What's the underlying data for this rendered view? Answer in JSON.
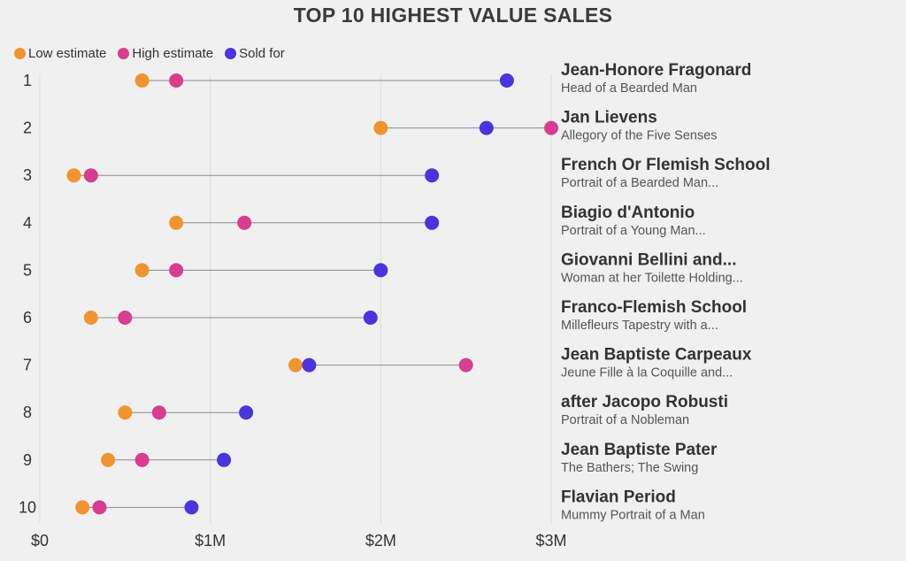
{
  "colors": {
    "low": "#f0942f",
    "high": "#d83d8f",
    "sold": "#4a34de",
    "line": "#8a8a8a",
    "grid": "#dcdcdc"
  },
  "chart_data": {
    "type": "dumbbell",
    "title": "TOP 10 HIGHEST VALUE SALES",
    "legend": [
      {
        "key": "low",
        "label": "Low estimate"
      },
      {
        "key": "high",
        "label": "High estimate"
      },
      {
        "key": "sold",
        "label": "Sold for"
      }
    ],
    "x_ticks": [
      {
        "value": 0,
        "label": "$0"
      },
      {
        "value": 1000000,
        "label": "$1M"
      },
      {
        "value": 2000000,
        "label": "$2M"
      },
      {
        "value": 3000000,
        "label": "$3M"
      }
    ],
    "xlim": [
      0,
      3000000
    ],
    "rows": [
      {
        "rank": "1",
        "artist": "Jean-Honore Fragonard",
        "work": "Head of a Bearded Man",
        "low": 600000,
        "high": 800000,
        "sold": 2740000
      },
      {
        "rank": "2",
        "artist": "Jan Lievens",
        "work": "Allegory of the Five Senses",
        "low": 2000000,
        "high": 3000000,
        "sold": 2620000
      },
      {
        "rank": "3",
        "artist": "French Or Flemish School",
        "work": "Portrait of a Bearded Man...",
        "low": 200000,
        "high": 300000,
        "sold": 2300000
      },
      {
        "rank": "4",
        "artist": "Biagio d'Antonio",
        "work": "Portrait of a Young Man...",
        "low": 800000,
        "high": 1200000,
        "sold": 2300000
      },
      {
        "rank": "5",
        "artist": "Giovanni Bellini and...",
        "work": "Woman at her Toilette Holding...",
        "low": 600000,
        "high": 800000,
        "sold": 2000000
      },
      {
        "rank": "6",
        "artist": "Franco-Flemish School",
        "work": "Millefleurs Tapestry with a...",
        "low": 300000,
        "high": 500000,
        "sold": 1940000
      },
      {
        "rank": "7",
        "artist": "Jean Baptiste Carpeaux",
        "work": "Jeune Fille à la Coquille and...",
        "low": 1500000,
        "high": 2500000,
        "sold": 1580000
      },
      {
        "rank": "8",
        "artist": "after Jacopo Robusti",
        "work": "Portrait of a Nobleman",
        "low": 500000,
        "high": 700000,
        "sold": 1210000
      },
      {
        "rank": "9",
        "artist": "Jean Baptiste Pater",
        "work": "The Bathers; The Swing",
        "low": 400000,
        "high": 600000,
        "sold": 1080000
      },
      {
        "rank": "10",
        "artist": "Flavian Period",
        "work": "Mummy Portrait of a Man",
        "low": 250000,
        "high": 350000,
        "sold": 890000
      }
    ]
  }
}
